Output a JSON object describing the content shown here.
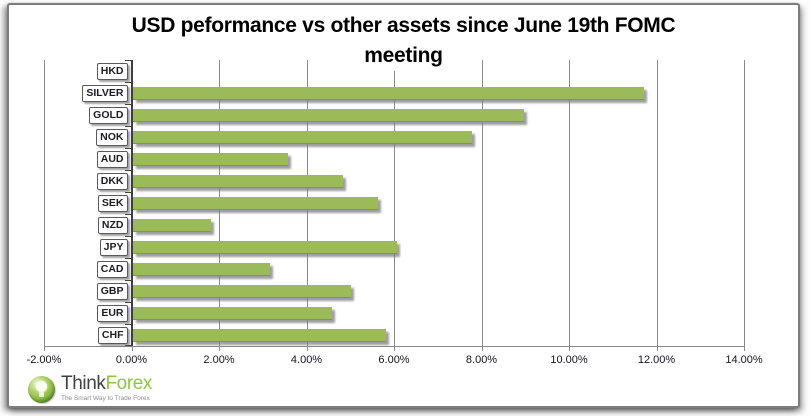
{
  "window": {
    "background": "#ffffff",
    "frame_border_color": "#7d7d7d"
  },
  "chart_data": {
    "type": "bar",
    "orientation": "horizontal",
    "title_line1": "USD peformance vs other assets since June 19th FOMC",
    "title_line2": "meeting",
    "categories": [
      "HKD",
      "SILVER",
      "GOLD",
      "NOK",
      "AUD",
      "DKK",
      "SEK",
      "NZD",
      "JPY",
      "CAD",
      "GBP",
      "EUR",
      "CHF"
    ],
    "values": [
      0.0,
      11.7,
      8.95,
      7.75,
      3.55,
      4.8,
      5.6,
      1.8,
      6.05,
      3.15,
      5.0,
      4.55,
      5.8
    ],
    "value_unit": "%",
    "xlim": [
      -2,
      14
    ],
    "x_tick_labels": [
      "-2.00%",
      "0.00%",
      "2.00%",
      "4.00%",
      "6.00%",
      "8.00%",
      "10.00%",
      "12.00%",
      "14.00%"
    ],
    "grid": true,
    "legend": "none",
    "bar_color": "#9BBB59",
    "bar_edge_color": "#7A9A43",
    "gridline_color": "#8a8a8a",
    "axis_color": "#3f3f3f",
    "tick_label_color": "#14141e"
  },
  "logo": {
    "icon": "lightbulb-icon",
    "brand_primary": "Think",
    "brand_secondary": "Forex",
    "brand_primary_color": "#414042",
    "brand_secondary_color": "#8DC63F",
    "tagline": "The Smart Way to Trade Forex"
  }
}
